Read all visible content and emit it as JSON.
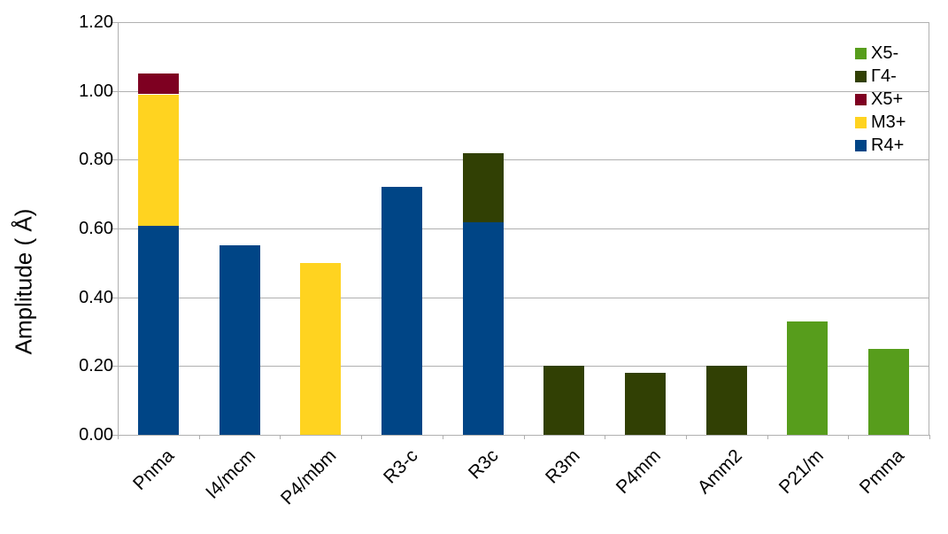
{
  "chart_data": {
    "type": "bar",
    "stacked": true,
    "title": "",
    "xlabel": "",
    "ylabel": "Amplitude ( Å)",
    "ylim": [
      0,
      1.2
    ],
    "ytick_step": 0.2,
    "ytick_decimals": 2,
    "grid": true,
    "grid_color": "#b0b0b0",
    "background": "#ffffff",
    "categories": [
      "Pnma",
      "I4/mcm",
      "P4/mbm",
      "R3-c",
      "R3c",
      "R3m",
      "P4mm",
      "Amm2",
      "P21/m",
      "Pmma"
    ],
    "series": [
      {
        "name": "R4+",
        "color": "#004586",
        "values": [
          0.61,
          0.55,
          0,
          0.72,
          0.62,
          0,
          0,
          0,
          0,
          0
        ]
      },
      {
        "name": "M3+",
        "color": "#FFD320",
        "values": [
          0.38,
          0,
          0.5,
          0,
          0,
          0,
          0,
          0,
          0,
          0
        ]
      },
      {
        "name": "X5+",
        "color": "#7E0021",
        "values": [
          0.06,
          0,
          0,
          0,
          0,
          0,
          0,
          0,
          0,
          0
        ]
      },
      {
        "name": "Γ4-",
        "color": "#314004",
        "values": [
          0,
          0,
          0,
          0,
          0.2,
          0.2,
          0.18,
          0.2,
          0,
          0
        ]
      },
      {
        "name": "X5-",
        "color": "#579D1C",
        "values": [
          0,
          0,
          0,
          0,
          0,
          0,
          0,
          0,
          0.33,
          0.25
        ]
      }
    ],
    "legend": {
      "position": "top-right",
      "entries": [
        "X5-",
        "Γ4-",
        "X5+",
        "M3+",
        "R4+"
      ]
    },
    "category_totals": [
      1.05,
      0.55,
      0.5,
      0.72,
      0.82,
      0.2,
      0.18,
      0.2,
      0.33,
      0.25
    ]
  }
}
